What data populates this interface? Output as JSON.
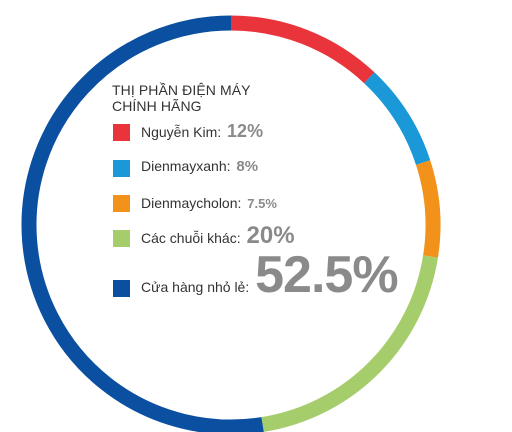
{
  "chart_data": {
    "type": "pie",
    "title": [
      "THỊ PHẦN ĐIỆN MÁY",
      "CHÍNH HÃNG"
    ],
    "slices": [
      {
        "label": "Nguyễn Kim:",
        "value_label": "12%",
        "value": 12,
        "color": "#e8343a"
      },
      {
        "label": "Dienmayxanh:",
        "value_label": "8%",
        "value": 8,
        "color": "#1a98d8"
      },
      {
        "label": "Dienmaycholon:",
        "value_label": "7.5%",
        "value": 7.5,
        "color": "#f2921b"
      },
      {
        "label": "Các chuỗi khác:",
        "value_label": "20%",
        "value": 20,
        "color": "#a6cd6c"
      },
      {
        "label": "Cửa hàng nhỏ lẻ:",
        "value_label": "52.5%",
        "value": 52.5,
        "color": "#0a4fa0"
      }
    ],
    "legend_position": "center"
  }
}
